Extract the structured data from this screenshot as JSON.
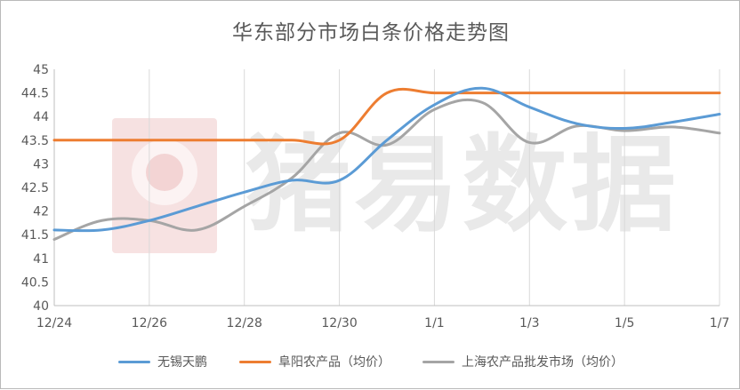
{
  "chart_data": {
    "type": "line",
    "title": "华东部分市场白条价格走势图",
    "watermark": "猪易数据",
    "xlabel": "",
    "ylabel": "",
    "x_ticks": [
      "12/24",
      "12/26",
      "12/28",
      "12/30",
      "1/1",
      "1/3",
      "1/5",
      "1/7"
    ],
    "y_ticks": [
      40,
      40.5,
      41,
      41.5,
      42,
      42.5,
      43,
      43.5,
      44,
      44.5,
      45
    ],
    "y_tick_labels": [
      "40",
      "40.5",
      "41",
      "41.5",
      "42",
      "42.5",
      "43",
      "43.5",
      "44",
      "44.5",
      "45"
    ],
    "ylim": [
      40,
      45
    ],
    "x_dates": [
      "12/24",
      "12/25",
      "12/26",
      "12/27",
      "12/28",
      "12/29",
      "12/30",
      "12/31",
      "1/1",
      "1/2",
      "1/3",
      "1/4",
      "1/5",
      "1/6",
      "1/7"
    ],
    "grid": "vertical",
    "legend_position": "bottom",
    "series": [
      {
        "name": "无锡天鹏",
        "color": "#5b9bd5",
        "values": [
          41.6,
          41.6,
          41.8,
          42.1,
          42.4,
          42.65,
          42.65,
          43.5,
          44.25,
          44.6,
          44.2,
          43.85,
          43.75,
          43.88,
          44.05
        ]
      },
      {
        "name": "阜阳农产品（均价）",
        "color": "#ed7d31",
        "values": [
          43.5,
          43.5,
          43.5,
          43.5,
          43.5,
          43.5,
          43.5,
          44.5,
          44.5,
          44.5,
          44.5,
          44.5,
          44.5,
          44.5,
          44.5
        ]
      },
      {
        "name": "上海农产品批发市场（均价）",
        "color": "#a5a5a5",
        "values": [
          41.4,
          41.8,
          41.8,
          41.6,
          42.1,
          42.7,
          43.65,
          43.4,
          44.15,
          44.3,
          43.45,
          43.8,
          43.7,
          43.78,
          43.65
        ]
      }
    ]
  }
}
